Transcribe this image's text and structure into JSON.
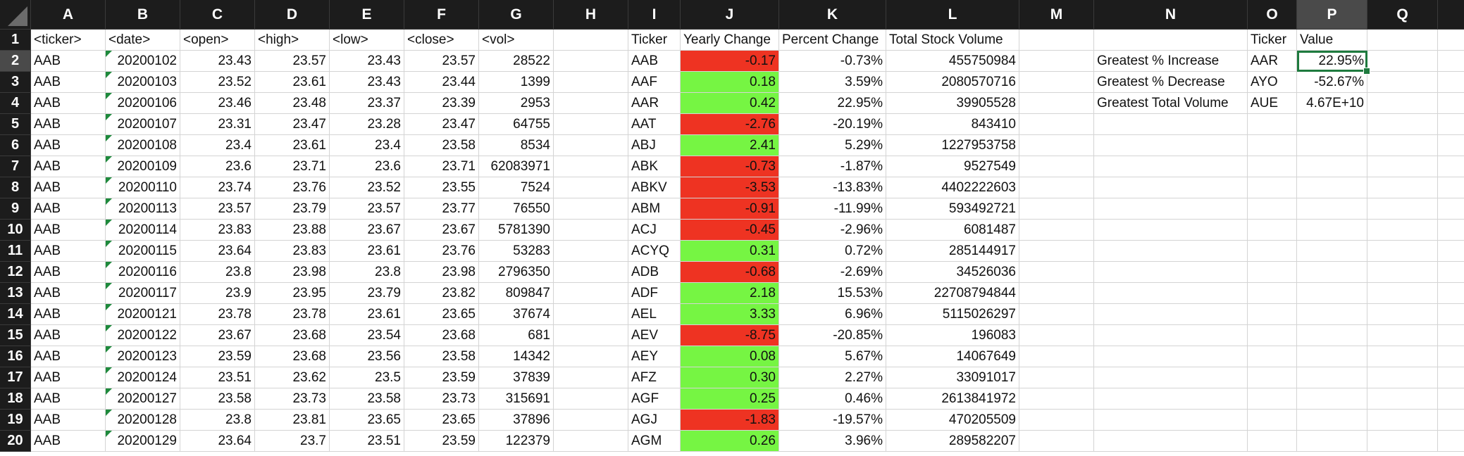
{
  "columns": [
    "A",
    "B",
    "C",
    "D",
    "E",
    "F",
    "G",
    "H",
    "I",
    "J",
    "K",
    "L",
    "M",
    "N",
    "O",
    "P",
    "Q"
  ],
  "selected_column": "P",
  "selected_row": 2,
  "colors": {
    "positive_fill": "#76f543",
    "negative_fill": "#ee3322",
    "selection": "#1e7a3e",
    "comment_flag": "#1e8a3c"
  },
  "raw_headers": [
    "<ticker>",
    "<date>",
    "<open>",
    "<high>",
    "<low>",
    "<close>",
    "<vol>"
  ],
  "raw_rows": [
    [
      "AAB",
      "20200102",
      "23.43",
      "23.57",
      "23.43",
      "23.57",
      "28522"
    ],
    [
      "AAB",
      "20200103",
      "23.52",
      "23.61",
      "23.43",
      "23.44",
      "1399"
    ],
    [
      "AAB",
      "20200106",
      "23.46",
      "23.48",
      "23.37",
      "23.39",
      "2953"
    ],
    [
      "AAB",
      "20200107",
      "23.31",
      "23.47",
      "23.28",
      "23.47",
      "64755"
    ],
    [
      "AAB",
      "20200108",
      "23.4",
      "23.61",
      "23.4",
      "23.58",
      "8534"
    ],
    [
      "AAB",
      "20200109",
      "23.6",
      "23.71",
      "23.6",
      "23.71",
      "62083971"
    ],
    [
      "AAB",
      "20200110",
      "23.74",
      "23.76",
      "23.52",
      "23.55",
      "7524"
    ],
    [
      "AAB",
      "20200113",
      "23.57",
      "23.79",
      "23.57",
      "23.77",
      "76550"
    ],
    [
      "AAB",
      "20200114",
      "23.83",
      "23.88",
      "23.67",
      "23.67",
      "5781390"
    ],
    [
      "AAB",
      "20200115",
      "23.64",
      "23.83",
      "23.61",
      "23.76",
      "53283"
    ],
    [
      "AAB",
      "20200116",
      "23.8",
      "23.98",
      "23.8",
      "23.98",
      "2796350"
    ],
    [
      "AAB",
      "20200117",
      "23.9",
      "23.95",
      "23.79",
      "23.82",
      "809847"
    ],
    [
      "AAB",
      "20200121",
      "23.78",
      "23.78",
      "23.61",
      "23.65",
      "37674"
    ],
    [
      "AAB",
      "20200122",
      "23.67",
      "23.68",
      "23.54",
      "23.68",
      "681"
    ],
    [
      "AAB",
      "20200123",
      "23.59",
      "23.68",
      "23.56",
      "23.58",
      "14342"
    ],
    [
      "AAB",
      "20200124",
      "23.51",
      "23.62",
      "23.5",
      "23.59",
      "37839"
    ],
    [
      "AAB",
      "20200127",
      "23.58",
      "23.73",
      "23.58",
      "23.73",
      "315691"
    ],
    [
      "AAB",
      "20200128",
      "23.8",
      "23.81",
      "23.65",
      "23.65",
      "37896"
    ],
    [
      "AAB",
      "20200129",
      "23.64",
      "23.7",
      "23.51",
      "23.59",
      "122379"
    ]
  ],
  "summary_headers": [
    "Ticker",
    "Yearly Change",
    "Percent Change",
    "Total Stock Volume"
  ],
  "summary_rows": [
    [
      "AAB",
      "-0.17",
      "-0.73%",
      "455750984"
    ],
    [
      "AAF",
      "0.18",
      "3.59%",
      "2080570716"
    ],
    [
      "AAR",
      "0.42",
      "22.95%",
      "39905528"
    ],
    [
      "AAT",
      "-2.76",
      "-20.19%",
      "843410"
    ],
    [
      "ABJ",
      "2.41",
      "5.29%",
      "1227953758"
    ],
    [
      "ABK",
      "-0.73",
      "-1.87%",
      "9527549"
    ],
    [
      "ABKV",
      "-3.53",
      "-13.83%",
      "4402222603"
    ],
    [
      "ABM",
      "-0.91",
      "-11.99%",
      "593492721"
    ],
    [
      "ACJ",
      "-0.45",
      "-2.96%",
      "6081487"
    ],
    [
      "ACYQ",
      "0.31",
      "0.72%",
      "285144917"
    ],
    [
      "ADB",
      "-0.68",
      "-2.69%",
      "34526036"
    ],
    [
      "ADF",
      "2.18",
      "15.53%",
      "22708794844"
    ],
    [
      "AEL",
      "3.33",
      "6.96%",
      "5115026297"
    ],
    [
      "AEV",
      "-8.75",
      "-20.85%",
      "196083"
    ],
    [
      "AEY",
      "0.08",
      "5.67%",
      "14067649"
    ],
    [
      "AFZ",
      "0.30",
      "2.27%",
      "33091017"
    ],
    [
      "AGF",
      "0.25",
      "0.46%",
      "2613841972"
    ],
    [
      "AGJ",
      "-1.83",
      "-19.57%",
      "470205509"
    ],
    [
      "AGM",
      "0.26",
      "3.96%",
      "289582207"
    ]
  ],
  "greatest_headers": [
    "Ticker",
    "Value"
  ],
  "greatest_rows": [
    [
      "Greatest % Increase",
      "AAR",
      "22.95%"
    ],
    [
      "Greatest % Decrease",
      "AYO",
      "-52.67%"
    ],
    [
      "Greatest Total Volume",
      "AUE",
      "4.67E+10"
    ]
  ]
}
